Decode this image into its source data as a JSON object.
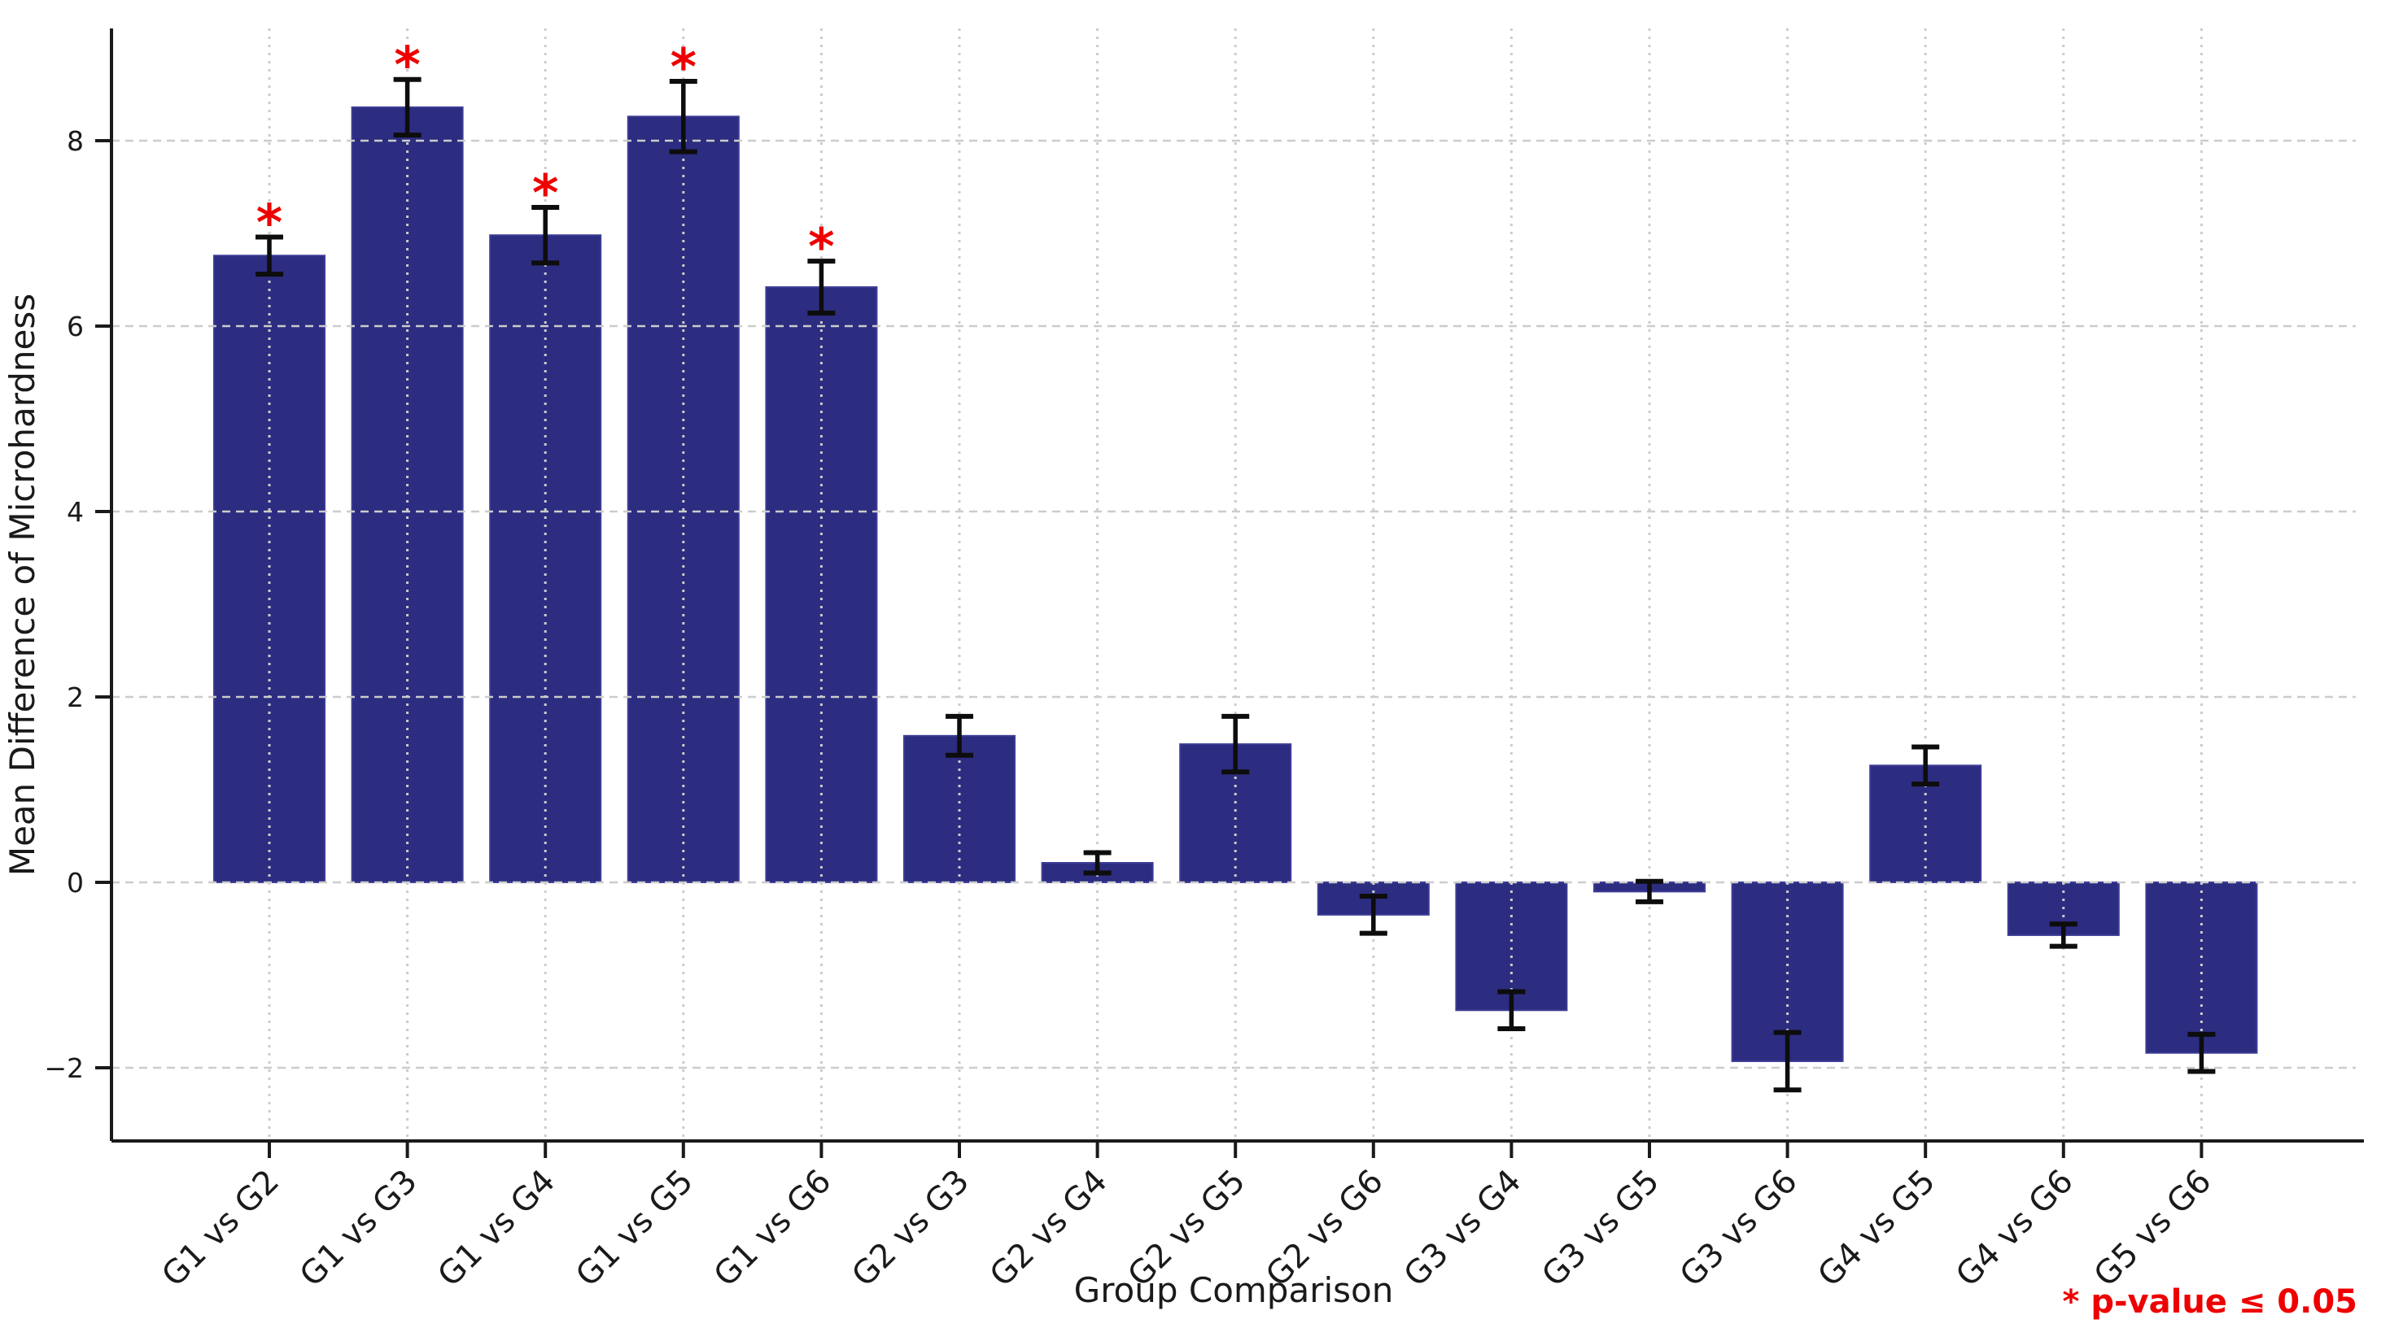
{
  "chart_data": {
    "type": "bar",
    "title": "",
    "xlabel": "Group Comparison",
    "ylabel": "Mean Difference of Microhardness",
    "categories": [
      "G1 vs G2",
      "G1 vs G3",
      "G1 vs G4",
      "G1 vs G5",
      "G1 vs G6",
      "G2 vs G3",
      "G2 vs G4",
      "G2 vs G5",
      "G2 vs G6",
      "G3 vs G4",
      "G3 vs G5",
      "G3 vs G6",
      "G4 vs G5",
      "G4 vs G6",
      "G5 vs G6"
    ],
    "values": [
      6.76,
      8.36,
      6.98,
      8.26,
      6.42,
      1.58,
      0.21,
      1.49,
      -0.35,
      -1.38,
      -0.1,
      -1.93,
      1.26,
      -0.57,
      -1.84
    ],
    "errors": [
      0.2,
      0.3,
      0.3,
      0.38,
      0.28,
      0.21,
      0.11,
      0.3,
      0.2,
      0.2,
      0.11,
      0.31,
      0.2,
      0.12,
      0.2
    ],
    "significant": [
      true,
      true,
      true,
      true,
      true,
      false,
      false,
      false,
      false,
      false,
      false,
      false,
      false,
      false,
      false
    ],
    "significance_marker": "*",
    "annotation": "* p-value ≤ 0.05",
    "yticks": [
      -2,
      0,
      2,
      4,
      6,
      8
    ],
    "ylim": [
      -2.79,
      9.21
    ],
    "grid": true,
    "legend_position": "bottom-right",
    "colors": {
      "bar": "#2c2c80",
      "bar_edge": "#3c3c96",
      "error": "#0d0d0d",
      "significant": "#ef0000",
      "grid": "#cccccc",
      "axis": "#1a1a1a"
    }
  }
}
